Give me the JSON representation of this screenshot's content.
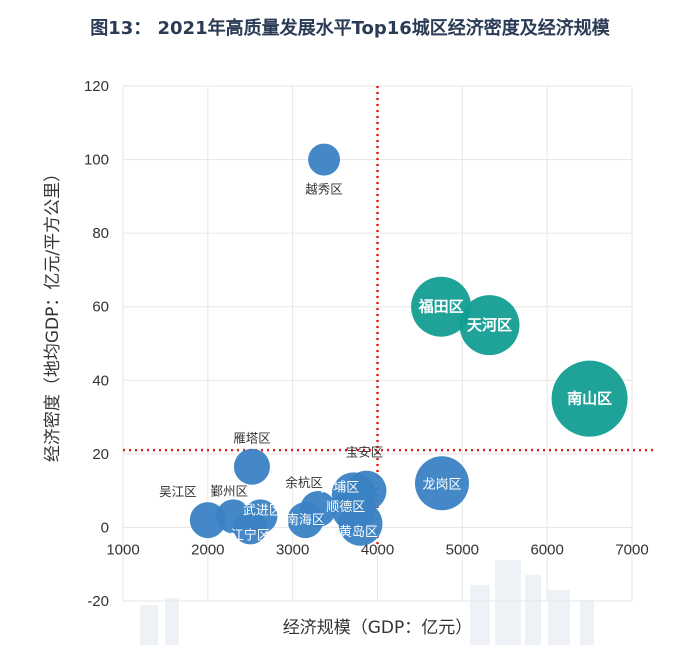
{
  "chart_data": {
    "type": "scatter",
    "title": "图13：  2021年高质量发展水平Top16城区经济密度及经济规模",
    "xlabel": "经济规模（GDP：亿元）",
    "ylabel": "经济密度（地均GDP：亿元/平方公里）",
    "xlim": [
      1000,
      7000
    ],
    "ylim": [
      -20,
      120
    ],
    "xticks": [
      1000,
      2000,
      3000,
      4000,
      5000,
      6000,
      7000
    ],
    "yticks": [
      -20,
      0,
      20,
      40,
      60,
      80,
      100,
      120
    ],
    "x_divider": 4000,
    "y_divider": 21,
    "colors": {
      "group_a": "#3a82c4",
      "group_b": "#139e94",
      "divider": "#e0201c",
      "grid": "#e6e6e6"
    },
    "points": [
      {
        "name": "越秀区",
        "x": 3370,
        "y": 100,
        "size": 16,
        "group": "a",
        "label_pos": "below"
      },
      {
        "name": "福田区",
        "x": 4750,
        "y": 60,
        "size": 30,
        "group": "b",
        "label_pos": "center"
      },
      {
        "name": "天河区",
        "x": 5320,
        "y": 55,
        "size": 30,
        "group": "b",
        "label_pos": "center"
      },
      {
        "name": "南山区",
        "x": 6500,
        "y": 35,
        "size": 38,
        "group": "b",
        "label_pos": "center"
      },
      {
        "name": "龙岗区",
        "x": 4760,
        "y": 12,
        "size": 27,
        "group": "a",
        "label_pos": "center"
      },
      {
        "name": "宝安区",
        "x": 3870,
        "y": 10,
        "size": 20,
        "group": "a",
        "label_pos": "above"
      },
      {
        "name": "雁塔区",
        "x": 2520,
        "y": 16.5,
        "size": 18,
        "group": "a",
        "label_pos": "above"
      },
      {
        "name": "黄埔区",
        "x": 3720,
        "y": 9,
        "size": 22,
        "group": "a",
        "label_pos": "center"
      },
      {
        "name": "顺德区",
        "x": 3720,
        "y": 5,
        "size": 22,
        "group": "a",
        "label_pos": "center"
      },
      {
        "name": "黄岛区",
        "x": 3800,
        "y": 1,
        "size": 22,
        "group": "a",
        "label_pos": "center"
      },
      {
        "name": "余杭区",
        "x": 3300,
        "y": 5,
        "size": 18,
        "group": "a",
        "label_pos": "above"
      },
      {
        "name": "南海区",
        "x": 3150,
        "y": 2,
        "size": 18,
        "group": "a",
        "label_pos": "center"
      },
      {
        "name": "武进区",
        "x": 2620,
        "y": 3,
        "size": 17,
        "group": "a",
        "label_pos": "center"
      },
      {
        "name": "江宁区",
        "x": 2500,
        "y": 0,
        "size": 17,
        "group": "a",
        "label_pos": "center"
      },
      {
        "name": "鄞州区",
        "x": 2300,
        "y": 3,
        "size": 17,
        "group": "a",
        "label_pos": "above"
      },
      {
        "name": "吴江区",
        "x": 2000,
        "y": 2,
        "size": 18,
        "group": "a",
        "label_pos": "above-left"
      }
    ]
  }
}
